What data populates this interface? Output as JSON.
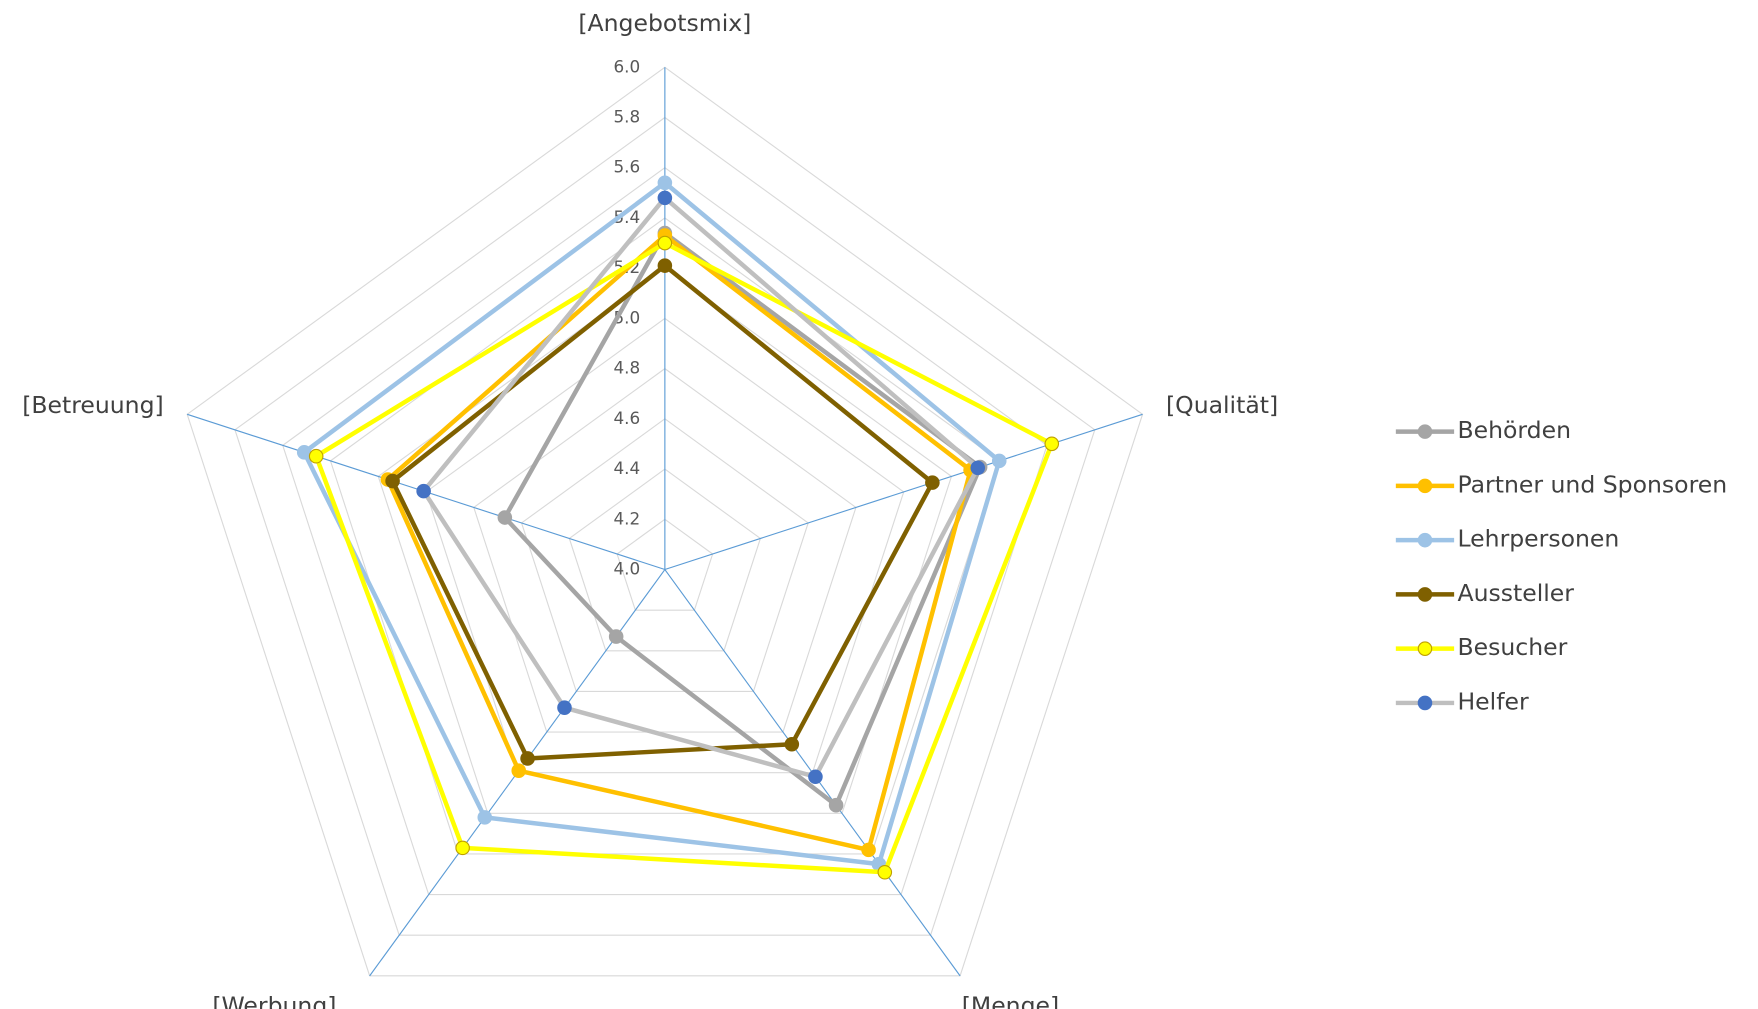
{
  "chart_data": {
    "type": "radar",
    "categories": [
      "[Angebotsmix]",
      "[Qualität]",
      "[Menge]",
      "[Werbung]",
      "[Betreuung]"
    ],
    "ylim": [
      4,
      6
    ],
    "yticks": [
      {
        "value": 4,
        "label": "4.0"
      },
      {
        "value": 4.2,
        "label": "4.2"
      },
      {
        "value": 4.4,
        "label": "4.4"
      },
      {
        "value": 4.6,
        "label": "4.6"
      },
      {
        "value": 4.8,
        "label": "4.8"
      },
      {
        "value": 5,
        "label": "5.0"
      },
      {
        "value": 5.2,
        "label": "5.2"
      },
      {
        "value": 5.4,
        "label": "5.4"
      },
      {
        "value": 5.6,
        "label": "5.6"
      },
      {
        "value": 5.8,
        "label": "5.8"
      },
      {
        "value": 6,
        "label": "6.0"
      }
    ],
    "grid": true,
    "legend": "right",
    "series": [
      {
        "name": "Behörden",
        "color": "#a5a5a5",
        "marker_color": "#a5a5a5",
        "values": [
          5.34,
          5.32,
          5.16,
          4.33,
          4.67
        ]
      },
      {
        "name": "Partner und Sponsoren",
        "color": "#ffc000",
        "marker_color": "#ffc000",
        "values": [
          5.33,
          5.28,
          5.38,
          4.99,
          5.16
        ]
      },
      {
        "name": "Lehrpersonen",
        "color": "#9dc3e6",
        "marker_color": "#9dc3e6",
        "values": [
          5.54,
          5.4,
          5.45,
          5.22,
          5.51
        ]
      },
      {
        "name": "Aussteller",
        "color": "#7f6000",
        "marker_color": "#7f6000",
        "values": [
          5.21,
          5.12,
          4.86,
          4.93,
          5.14
        ]
      },
      {
        "name": "Besucher",
        "color": "#ffff00",
        "marker_color": "#ffff00",
        "values": [
          5.3,
          5.62,
          5.49,
          5.37,
          5.46
        ]
      },
      {
        "name": "Helfer",
        "color": "#bfbfbf",
        "marker_color": "#4472c4",
        "values": [
          5.48,
          5.31,
          5.02,
          4.68,
          5.01
        ]
      }
    ]
  }
}
